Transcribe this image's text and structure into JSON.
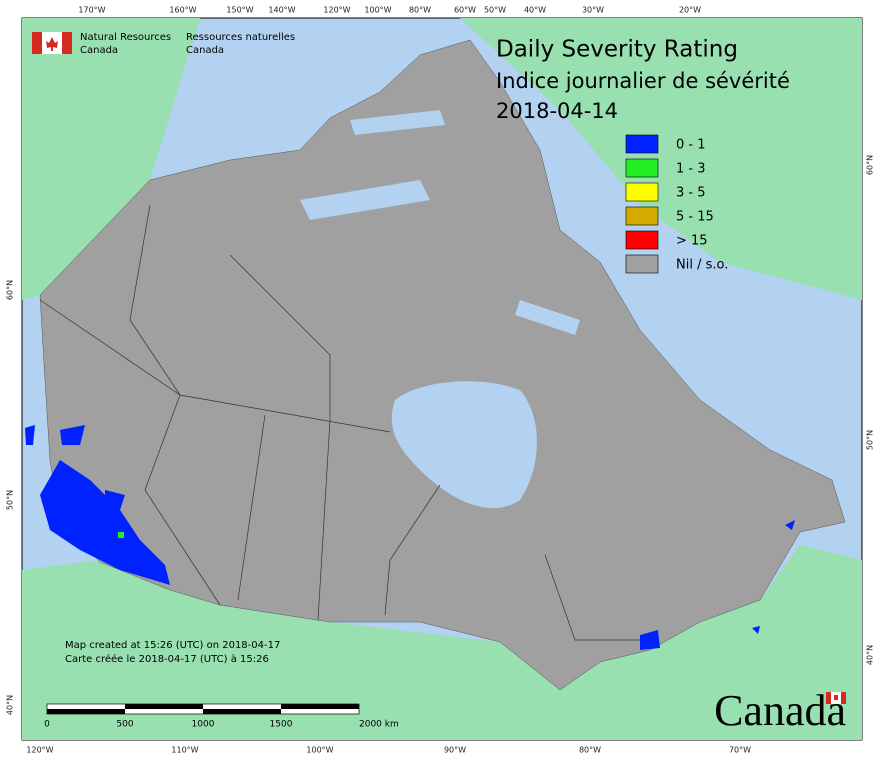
{
  "header": {
    "title": "Daily Severity Rating",
    "subtitle": "Indice journalier de sévérité",
    "date": "2018-04-14"
  },
  "agency": {
    "en_line1": "Natural Resources",
    "en_line2": "Canada",
    "fr_line1": "Ressources naturelles",
    "fr_line2": "Canada"
  },
  "legend": {
    "items": [
      {
        "label": "0 - 1",
        "color": "#0022ff"
      },
      {
        "label": "1 - 3",
        "color": "#22ee22"
      },
      {
        "label": "3 - 5",
        "color": "#ffff00"
      },
      {
        "label": "5 - 15",
        "color": "#d4aa00"
      },
      {
        "label": "> 15",
        "color": "#ff0000"
      },
      {
        "label": "Nil / s.o.",
        "color": "#a0a0a0"
      }
    ]
  },
  "notes": {
    "created_en": "Map created at 15:26 (UTC) on 2018-04-17",
    "created_fr": "Carte créée le 2018-04-17 (UTC) à 15:26"
  },
  "scale_bar": {
    "labels": [
      "0",
      "500",
      "1000",
      "1500",
      "2000  km"
    ]
  },
  "graticule": {
    "top": [
      "170°W",
      "160°W",
      "150°W",
      "140°W",
      "120°W",
      "100°W",
      "80°W",
      "60°W",
      "50°W",
      "40°W",
      "30°W",
      "20°W"
    ],
    "bottom": [
      "120°W",
      "110°W",
      "100°W",
      "90°W",
      "80°W",
      "70°W"
    ],
    "left": [
      "60°N",
      "50°N",
      "40°N"
    ],
    "right": [
      "60°N",
      "50°N",
      "40°N"
    ]
  },
  "wordmark": "Canada"
}
